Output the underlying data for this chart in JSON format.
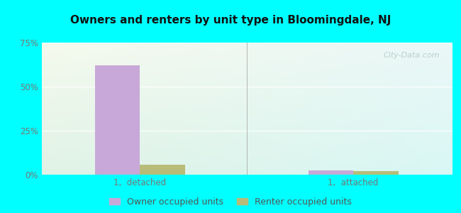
{
  "title": "Owners and renters by unit type in Bloomingdale, NJ",
  "categories": [
    "1,  detached",
    "1,  attached"
  ],
  "owner_values": [
    62.0,
    2.5
  ],
  "renter_values": [
    5.5,
    2.0
  ],
  "owner_color": "#c8a8d8",
  "renter_color": "#b8bc78",
  "ylim": [
    0,
    75
  ],
  "yticks": [
    0,
    25,
    50,
    75
  ],
  "ytick_labels": [
    "0%",
    "25%",
    "50%",
    "75%"
  ],
  "background_color": "#00ffff",
  "watermark": "City-Data.com",
  "legend_labels": [
    "Owner occupied units",
    "Renter occupied units"
  ],
  "bar_width": 0.55,
  "group_positions": [
    1.2,
    3.8
  ],
  "xlim": [
    0,
    5.0
  ],
  "title_fontsize": 11,
  "tick_fontsize": 8.5,
  "legend_fontsize": 9
}
